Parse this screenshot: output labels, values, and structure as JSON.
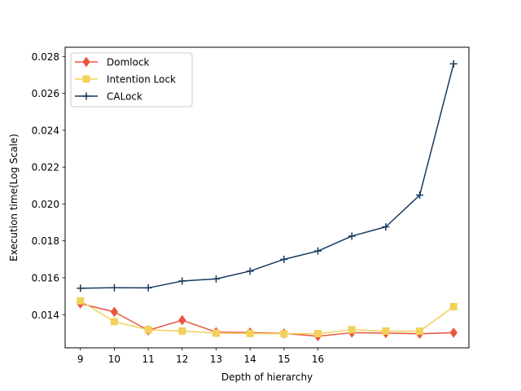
{
  "chart_data": {
    "type": "line",
    "title": "",
    "xlabel": "Depth of hierarchy",
    "ylabel": "Execution time(Log Scale)",
    "xlim": [
      8.55,
      20.45
    ],
    "ylim": [
      0.0122,
      0.0285
    ],
    "xticks": [
      9,
      10,
      11,
      12,
      13,
      14,
      15,
      16
    ],
    "yticks": [
      0.014,
      0.016,
      0.018,
      0.02,
      0.022,
      0.024,
      0.026,
      0.028
    ],
    "ytick_labels": [
      "0.014",
      "0.016",
      "0.018",
      "0.020",
      "0.022",
      "0.024",
      "0.026",
      "0.028"
    ],
    "x": [
      9,
      10,
      11,
      12,
      13,
      14,
      15,
      16,
      17,
      18,
      19,
      20
    ],
    "grid": false,
    "legend_position": "top-left",
    "series": [
      {
        "name": "Domlock",
        "color": "#e8553e",
        "marker": "diamond",
        "values": [
          0.0146,
          0.01415,
          0.01315,
          0.0137,
          0.01305,
          0.01303,
          0.01298,
          0.01283,
          0.01302,
          0.013,
          0.01296,
          0.01302
        ]
      },
      {
        "name": "Intention Lock",
        "color": "#f2d05a",
        "marker": "square",
        "values": [
          0.01475,
          0.01362,
          0.01318,
          0.01311,
          0.013,
          0.01298,
          0.01296,
          0.01297,
          0.01318,
          0.01311,
          0.0131,
          0.01443
        ]
      },
      {
        "name": "CALock",
        "color": "#173a5e",
        "marker": "plus",
        "values": [
          0.01543,
          0.01546,
          0.01545,
          0.01582,
          0.01594,
          0.01636,
          0.017,
          0.01745,
          0.01826,
          0.01876,
          0.02048,
          0.0276
        ]
      }
    ]
  }
}
